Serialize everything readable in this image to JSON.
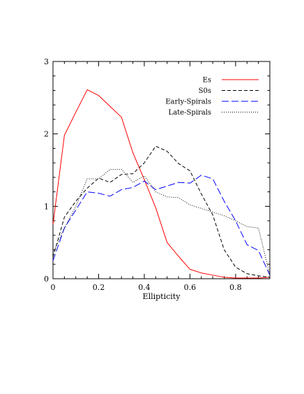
{
  "chart_data": {
    "type": "line",
    "title": "",
    "xlabel": "Ellipticity",
    "ylabel": "",
    "xlim": [
      0,
      0.95
    ],
    "ylim": [
      0,
      3
    ],
    "xticks": [
      0,
      0.2,
      0.4,
      0.6,
      0.8
    ],
    "xtick_labels": [
      "0",
      "0.2",
      "0.4",
      "0.6",
      "0.8"
    ],
    "yticks": [
      0,
      1,
      2,
      3
    ],
    "ytick_labels": [
      "0",
      "1",
      "2",
      "3"
    ],
    "grid": false,
    "legend": "top-right",
    "series": [
      {
        "name": "Es",
        "color": "#ff0000",
        "dash": "solid",
        "x": [
          0,
          0.05,
          0.1,
          0.15,
          0.2,
          0.25,
          0.3,
          0.35,
          0.4,
          0.45,
          0.5,
          0.55,
          0.6,
          0.65,
          0.7,
          0.75,
          0.8,
          0.85,
          0.9,
          0.95
        ],
        "y": [
          0.75,
          1.98,
          2.3,
          2.61,
          2.53,
          2.38,
          2.23,
          1.74,
          1.37,
          0.98,
          0.5,
          0.31,
          0.13,
          0.08,
          0.05,
          0.02,
          0.01,
          0.01,
          0.01,
          0.02
        ]
      },
      {
        "name": "S0s",
        "color": "#000000",
        "dash": "dashed",
        "x": [
          0,
          0.05,
          0.1,
          0.15,
          0.2,
          0.25,
          0.3,
          0.35,
          0.4,
          0.45,
          0.5,
          0.55,
          0.6,
          0.65,
          0.7,
          0.75,
          0.8,
          0.85,
          0.9,
          0.95
        ],
        "y": [
          0.3,
          0.85,
          1.07,
          1.25,
          1.39,
          1.33,
          1.44,
          1.45,
          1.6,
          1.83,
          1.76,
          1.59,
          1.49,
          1.17,
          0.88,
          0.4,
          0.16,
          0.07,
          0.04,
          0.02
        ]
      },
      {
        "name": "Early-Spirals",
        "color": "#0000ff",
        "dash": "longdash",
        "x": [
          0,
          0.05,
          0.1,
          0.15,
          0.2,
          0.25,
          0.3,
          0.35,
          0.4,
          0.45,
          0.5,
          0.55,
          0.6,
          0.65,
          0.7,
          0.75,
          0.8,
          0.85,
          0.9,
          0.95
        ],
        "y": [
          0.25,
          0.7,
          0.95,
          1.2,
          1.18,
          1.14,
          1.23,
          1.26,
          1.35,
          1.23,
          1.28,
          1.33,
          1.32,
          1.43,
          1.38,
          1.07,
          0.8,
          0.47,
          0.39,
          0.05
        ]
      },
      {
        "name": "Late-Spirals",
        "color": "#000000",
        "dash": "dotted",
        "x": [
          0,
          0.05,
          0.1,
          0.15,
          0.2,
          0.25,
          0.3,
          0.35,
          0.4,
          0.45,
          0.5,
          0.55,
          0.6,
          0.65,
          0.7,
          0.75,
          0.8,
          0.85,
          0.9,
          0.95
        ],
        "y": [
          0.35,
          0.7,
          1.0,
          1.38,
          1.38,
          1.51,
          1.51,
          1.33,
          1.42,
          1.2,
          1.13,
          1.12,
          1.02,
          0.97,
          0.92,
          0.87,
          0.8,
          0.72,
          0.7,
          0.05
        ]
      }
    ]
  }
}
